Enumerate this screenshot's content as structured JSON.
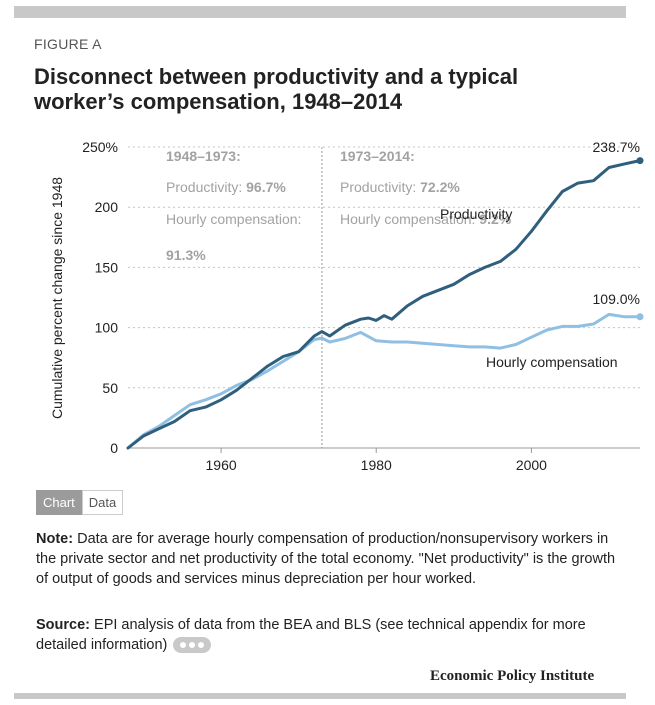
{
  "figure_label": "FIGURE A",
  "title": "Disconnect between productivity and a typical worker’s compensation, 1948–2014",
  "tabs": {
    "chart": "Chart",
    "data": "Data"
  },
  "note": {
    "label": "Note:",
    "text": " Data are for average hourly compensation of production/nonsupervisory workers in the private sector and net productivity of the total economy. \"Net productivity\" is the growth of output of goods and services minus depreciation per hour worked."
  },
  "source": {
    "label": "Source:",
    "text": " EPI analysis of data from the BEA and BLS (see technical appendix for more detailed information)"
  },
  "org": "Economic Policy Institute",
  "colors": {
    "productivity": "#2f5f7d",
    "compensation": "#8fbfe3",
    "annotation": "#a2a2a2",
    "grid": "#c4c4c4"
  },
  "chart_data": {
    "type": "line",
    "title": "",
    "xlabel": "",
    "ylabel": "Cumulative percent change since 1948",
    "xlim": [
      1948,
      2014
    ],
    "ylim": [
      0,
      250
    ],
    "x_ticks": [
      1960,
      1980,
      2000
    ],
    "y_ticks": [
      0,
      50,
      100,
      150,
      200,
      250
    ],
    "y_tick_labels": [
      "0",
      "50",
      "100",
      "150",
      "200",
      "250%"
    ],
    "grid": "horizontal dotted",
    "divider_year": 1973,
    "series": [
      {
        "name": "Productivity",
        "x": [
          1948,
          1950,
          1952,
          1954,
          1956,
          1958,
          1960,
          1962,
          1964,
          1966,
          1968,
          1970,
          1972,
          1973,
          1974,
          1976,
          1978,
          1979,
          1980,
          1981,
          1982,
          1984,
          1986,
          1988,
          1990,
          1992,
          1994,
          1996,
          1998,
          2000,
          2002,
          2004,
          2006,
          2008,
          2010,
          2012,
          2014
        ],
        "values": [
          0,
          10,
          16,
          22,
          31,
          34,
          40,
          48,
          58,
          68,
          76,
          80,
          93,
          96.7,
          93,
          102,
          107,
          108,
          106,
          110,
          107,
          118,
          126,
          131,
          136,
          144,
          150,
          155,
          165,
          180,
          197,
          213,
          220,
          222,
          233,
          236,
          238.7
        ],
        "end_label": "238.7%"
      },
      {
        "name": "Hourly compensation",
        "x": [
          1948,
          1950,
          1952,
          1954,
          1956,
          1958,
          1960,
          1962,
          1964,
          1966,
          1968,
          1970,
          1972,
          1973,
          1974,
          1976,
          1978,
          1980,
          1982,
          1984,
          1986,
          1988,
          1990,
          1992,
          1994,
          1996,
          1998,
          2000,
          2002,
          2004,
          2006,
          2008,
          2010,
          2012,
          2014
        ],
        "values": [
          0,
          11,
          18,
          27,
          36,
          40,
          45,
          52,
          57,
          64,
          72,
          80,
          90,
          91.3,
          88,
          91,
          96,
          89,
          88,
          88,
          87,
          86,
          85,
          84,
          84,
          83,
          86,
          92,
          98,
          101,
          101,
          103,
          111,
          109,
          109.0
        ],
        "end_label": "109.0%"
      }
    ],
    "annotations": {
      "period1": {
        "heading": "1948–1973:",
        "prod_label": "Productivity: ",
        "prod_value": "96.7%",
        "comp_label": "Hourly compensation:",
        "comp_value": "91.3%"
      },
      "period2": {
        "heading": "1973–2014:",
        "prod_label": "Productivity: ",
        "prod_value": "72.2%",
        "comp_label": "Hourly compensation: ",
        "comp_value": "9.2%"
      }
    }
  }
}
